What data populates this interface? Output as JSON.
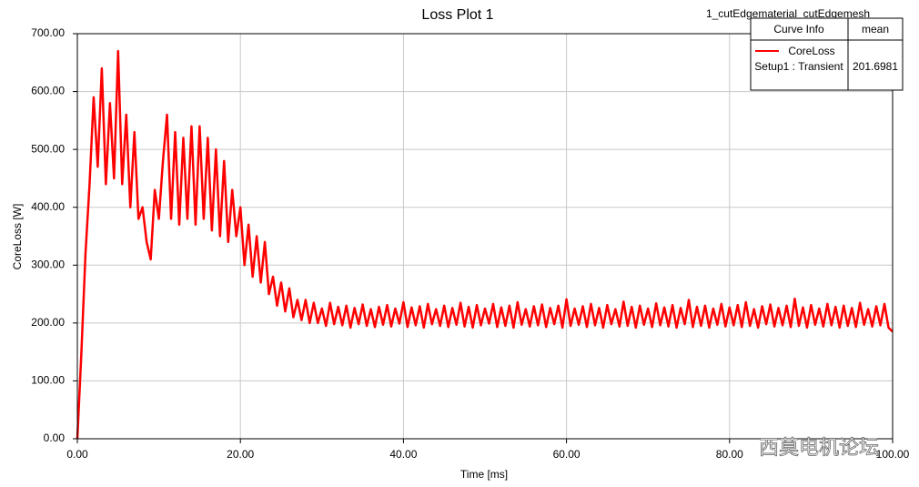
{
  "chart_data": {
    "type": "line",
    "title": "Loss Plot 1",
    "design": "1_cutEdgematerial_cutEdgemesh",
    "x_label": "Time [ms]",
    "y_label": "CoreLoss [W]",
    "xlim": [
      0,
      100
    ],
    "ylim": [
      0,
      700
    ],
    "grid": true,
    "xticks": [
      {
        "value": 0,
        "label": "0.00"
      },
      {
        "value": 20,
        "label": "20.00"
      },
      {
        "value": 40,
        "label": "40.00"
      },
      {
        "value": 60,
        "label": "60.00"
      },
      {
        "value": 80,
        "label": "80.00"
      },
      {
        "value": 100,
        "label": "100.00"
      }
    ],
    "yticks": [
      {
        "value": 0,
        "label": "0.00"
      },
      {
        "value": 100,
        "label": "100.00"
      },
      {
        "value": 200,
        "label": "200.00"
      },
      {
        "value": 300,
        "label": "300.00"
      },
      {
        "value": 400,
        "label": "400.00"
      },
      {
        "value": 500,
        "label": "500.00"
      },
      {
        "value": 600,
        "label": "600.00"
      },
      {
        "value": 700,
        "label": "700.00"
      }
    ],
    "legend": {
      "headers": [
        "Curve Info",
        "mean"
      ],
      "source": "Setup1 : Transient",
      "mean": 201.6981
    },
    "watermark": "西莫电机论坛",
    "x": [
      0,
      0.5,
      1,
      1.5,
      2,
      2.5,
      3,
      3.5,
      4,
      4.5,
      5,
      5.5,
      6,
      6.5,
      7,
      7.5,
      8,
      8.5,
      9,
      9.5,
      10,
      10.5,
      11,
      11.5,
      12,
      12.5,
      13,
      13.5,
      14,
      14.5,
      15,
      15.5,
      16,
      16.5,
      17,
      17.5,
      18,
      18.5,
      19,
      19.5,
      20,
      20.5,
      21,
      21.5,
      22,
      22.5,
      23,
      23.5,
      24,
      24.5,
      25,
      25.5,
      26,
      26.5,
      27,
      27.5,
      28,
      28.5,
      29,
      29.5,
      30,
      30.5,
      31,
      31.5,
      32,
      32.5,
      33,
      33.5,
      34,
      34.5,
      35,
      35.5,
      36,
      36.5,
      37,
      37.5,
      38,
      38.5,
      39,
      39.5,
      40,
      40.5,
      41,
      41.5,
      42,
      42.5,
      43,
      43.5,
      44,
      44.5,
      45,
      45.5,
      46,
      46.5,
      47,
      47.5,
      48,
      48.5,
      49,
      49.5,
      50,
      50.5,
      51,
      51.5,
      52,
      52.5,
      53,
      53.5,
      54,
      54.5,
      55,
      55.5,
      56,
      56.5,
      57,
      57.5,
      58,
      58.5,
      59,
      59.5,
      60,
      60.5,
      61,
      61.5,
      62,
      62.5,
      63,
      63.5,
      64,
      64.5,
      65,
      65.5,
      66,
      66.5,
      67,
      67.5,
      68,
      68.5,
      69,
      69.5,
      70,
      70.5,
      71,
      71.5,
      72,
      72.5,
      73,
      73.5,
      74,
      74.5,
      75,
      75.5,
      76,
      76.5,
      77,
      77.5,
      78,
      78.5,
      79,
      79.5,
      80,
      80.5,
      81,
      81.5,
      82,
      82.5,
      83,
      83.5,
      84,
      84.5,
      85,
      85.5,
      86,
      86.5,
      87,
      87.5,
      88,
      88.5,
      89,
      89.5,
      90,
      90.5,
      91,
      91.5,
      92,
      92.5,
      93,
      93.5,
      94,
      94.5,
      95,
      95.5,
      96,
      96.5,
      97,
      97.5,
      98,
      98.5,
      99,
      99.5,
      100
    ],
    "series": [
      {
        "name": "CoreLoss",
        "color": "#ff0000",
        "values": [
          0,
          150,
          320,
          440,
          590,
          470,
          640,
          440,
          580,
          450,
          670,
          440,
          560,
          400,
          530,
          380,
          400,
          340,
          310,
          430,
          380,
          480,
          560,
          380,
          530,
          370,
          520,
          380,
          540,
          370,
          540,
          380,
          520,
          360,
          500,
          350,
          480,
          340,
          430,
          350,
          400,
          300,
          370,
          280,
          350,
          270,
          340,
          250,
          280,
          230,
          270,
          220,
          260,
          210,
          240,
          205,
          240,
          200,
          235,
          200,
          225,
          195,
          235,
          198,
          228,
          196,
          230,
          192,
          226,
          198,
          232,
          195,
          224,
          193,
          228,
          197,
          231,
          194,
          225,
          199,
          236,
          193,
          227,
          196,
          229,
          192,
          233,
          198,
          224,
          195,
          230,
          193,
          226,
          197,
          235,
          194,
          228,
          192,
          231,
          196,
          225,
          199,
          233,
          193,
          227,
          195,
          230,
          192,
          236,
          197,
          224,
          194,
          229,
          196,
          232,
          193,
          226,
          198,
          230,
          192,
          241,
          195,
          225,
          197,
          229,
          193,
          233,
          196,
          226,
          192,
          231,
          198,
          224,
          194,
          237,
          195,
          228,
          192,
          230,
          197,
          225,
          193,
          234,
          196,
          227,
          194,
          231,
          192,
          226,
          198,
          240,
          193,
          228,
          195,
          230,
          192,
          225,
          197,
          233,
          194,
          227,
          196,
          231,
          193,
          236,
          195,
          224,
          192,
          229,
          198,
          232,
          194,
          226,
          196,
          230,
          193,
          242,
          195,
          227,
          192,
          231,
          197,
          225,
          194,
          233,
          196,
          228,
          192,
          230,
          195,
          226,
          193,
          235,
          197,
          224,
          194,
          229,
          196,
          233,
          192,
          185
        ]
      }
    ]
  }
}
